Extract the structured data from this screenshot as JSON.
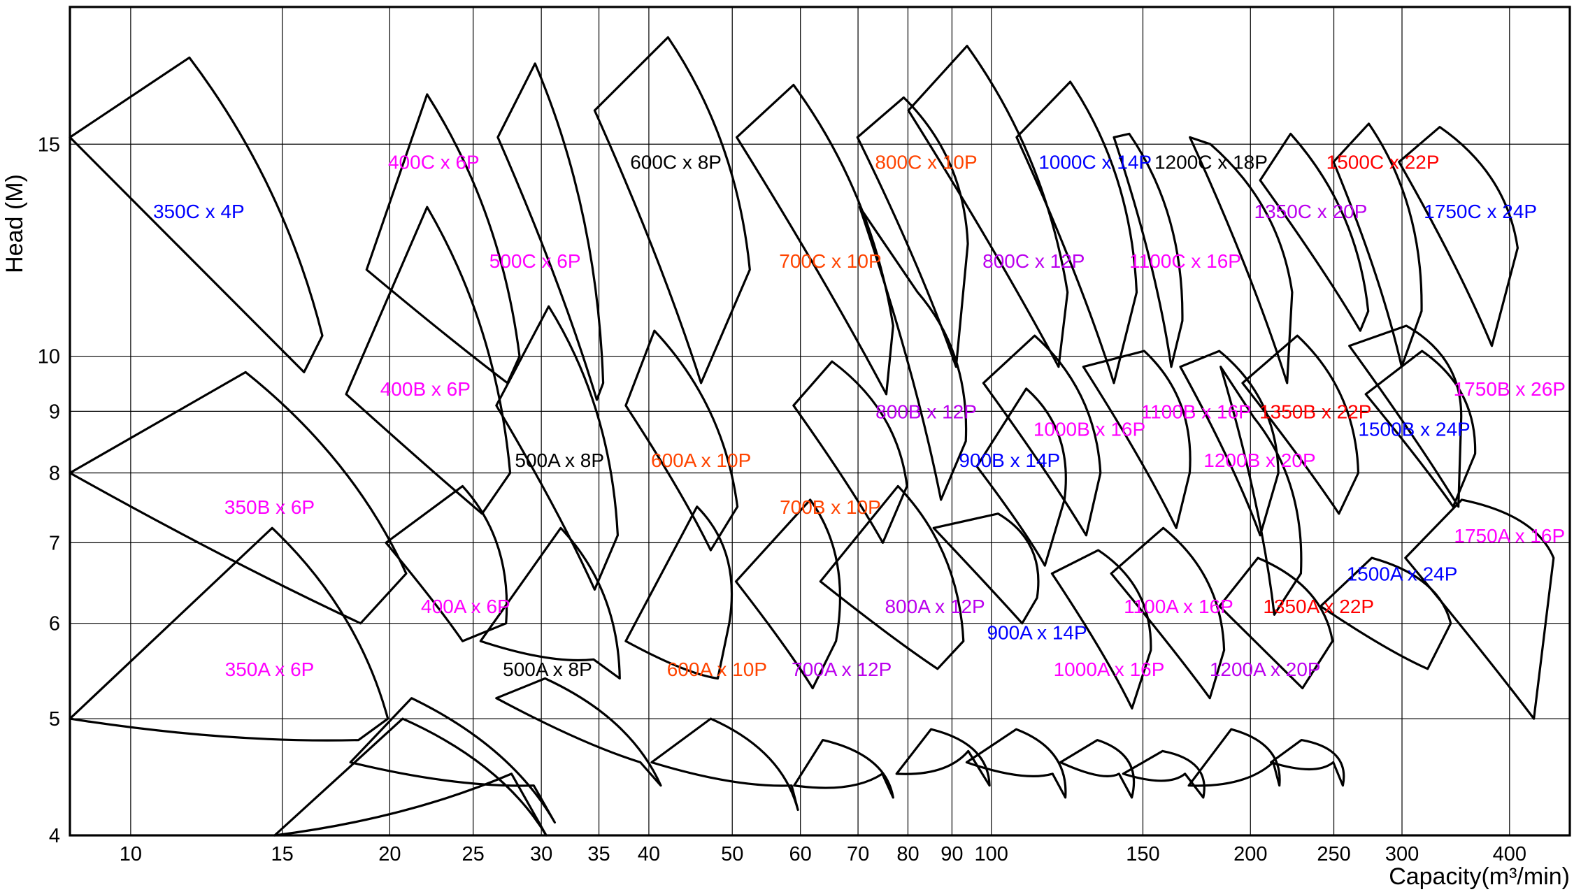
{
  "chart_data": {
    "type": "scatter",
    "title": "",
    "xlabel": "Capacity(m³/min)",
    "ylabel": "Head (M)",
    "x_scale": "log",
    "y_scale": "log",
    "xlim": [
      8.5,
      470
    ],
    "ylim": [
      4,
      19.5
    ],
    "x_ticks": [
      10,
      15,
      20,
      25,
      30,
      35,
      40,
      50,
      60,
      70,
      80,
      90,
      100,
      150,
      200,
      250,
      300,
      400
    ],
    "y_ticks": [
      4,
      5,
      6,
      7,
      8,
      9,
      10,
      15
    ],
    "grid": true,
    "colors": {
      "blue": "#0000ff",
      "magenta": "#ff00ff",
      "purple": "#bb00ee",
      "orange": "#ff4400",
      "red": "#ff0000",
      "black": "#000000"
    },
    "regions": [
      {
        "label": "350C x 4P",
        "color": "blue",
        "x": 12,
        "y": 13.2
      },
      {
        "label": "400C x 6P",
        "color": "magenta",
        "x": 22.5,
        "y": 14.5
      },
      {
        "label": "500C x 6P",
        "color": "magenta",
        "x": 29.5,
        "y": 12.0
      },
      {
        "label": "600C x 8P",
        "color": "black",
        "x": 43,
        "y": 14.5
      },
      {
        "label": "700C x 10P",
        "color": "orange",
        "x": 65,
        "y": 12.0
      },
      {
        "label": "800C x 10P",
        "color": "orange",
        "x": 84,
        "y": 14.5
      },
      {
        "label": "1000C x 14P",
        "color": "blue",
        "x": 132,
        "y": 14.5
      },
      {
        "label": "1200C x 18P",
        "color": "black",
        "x": 180,
        "y": 14.5
      },
      {
        "label": "1500C x 22P",
        "color": "red",
        "x": 285,
        "y": 14.5
      },
      {
        "label": "800C x 12P",
        "color": "purple",
        "x": 112,
        "y": 12.0
      },
      {
        "label": "1100C x 16P",
        "color": "magenta",
        "x": 168,
        "y": 12.0
      },
      {
        "label": "1350C x 20P",
        "color": "purple",
        "x": 235,
        "y": 13.2
      },
      {
        "label": "1750C x 24P",
        "color": "blue",
        "x": 370,
        "y": 13.2
      },
      {
        "label": "400B x 6P",
        "color": "magenta",
        "x": 22,
        "y": 9.4
      },
      {
        "label": "500A x 8P",
        "color": "black",
        "x": 31.5,
        "y": 8.2
      },
      {
        "label": "600A x 10P",
        "color": "orange",
        "x": 46,
        "y": 8.2
      },
      {
        "label": "800B x 12P",
        "color": "purple",
        "x": 84,
        "y": 9.0
      },
      {
        "label": "1000B x 16P",
        "color": "magenta",
        "x": 130,
        "y": 8.7
      },
      {
        "label": "1100B x 16P",
        "color": "magenta",
        "x": 173,
        "y": 9.0
      },
      {
        "label": "1350B x 22P",
        "color": "red",
        "x": 238,
        "y": 9.0
      },
      {
        "label": "1750B x 26P",
        "color": "magenta",
        "x": 400,
        "y": 9.4
      },
      {
        "label": "1500B x 24P",
        "color": "blue",
        "x": 310,
        "y": 8.7
      },
      {
        "label": "900B x 14P",
        "color": "blue",
        "x": 105,
        "y": 8.2
      },
      {
        "label": "1200B x 20P",
        "color": "magenta",
        "x": 205,
        "y": 8.2
      },
      {
        "label": "350B x 6P",
        "color": "magenta",
        "x": 14.5,
        "y": 7.5
      },
      {
        "label": "700B x 10P",
        "color": "orange",
        "x": 65,
        "y": 7.5
      },
      {
        "label": "1750A x 16P",
        "color": "magenta",
        "x": 400,
        "y": 7.1
      },
      {
        "label": "1500A x 24P",
        "color": "blue",
        "x": 300,
        "y": 6.6
      },
      {
        "label": "400A x 6P",
        "color": "magenta",
        "x": 24.5,
        "y": 6.2
      },
      {
        "label": "800A x 12P",
        "color": "purple",
        "x": 86,
        "y": 6.2
      },
      {
        "label": "1100A x 16P",
        "color": "magenta",
        "x": 165,
        "y": 6.2
      },
      {
        "label": "1350A x 22P",
        "color": "red",
        "x": 240,
        "y": 6.2
      },
      {
        "label": "900A x 14P",
        "color": "blue",
        "x": 113,
        "y": 5.9
      },
      {
        "label": "350A x 6P",
        "color": "magenta",
        "x": 14.5,
        "y": 5.5
      },
      {
        "label": "500A x 8P",
        "color": "black",
        "x": 30.5,
        "y": 5.5
      },
      {
        "label": "600A x 10P",
        "color": "orange",
        "x": 48,
        "y": 5.5
      },
      {
        "label": "700A x 12P",
        "color": "purple",
        "x": 67,
        "y": 5.5
      },
      {
        "label": "1000A x 16P",
        "color": "magenta",
        "x": 137,
        "y": 5.5
      },
      {
        "label": "1200A x 20P",
        "color": "purple",
        "x": 208,
        "y": 5.5
      }
    ],
    "envelopes": [
      [
        [
          8.5,
          15.2
        ],
        [
          11.7,
          17.7
        ],
        [
          16.7,
          10.4
        ],
        [
          15.9,
          9.7
        ]
      ],
      [
        [
          18.8,
          11.8
        ],
        [
          22.1,
          16.5
        ],
        [
          28.3,
          10.0
        ],
        [
          27.4,
          9.5
        ]
      ],
      [
        [
          26.7,
          15.2
        ],
        [
          29.5,
          17.5
        ],
        [
          35.4,
          9.5
        ],
        [
          34.8,
          9.2
        ]
      ],
      [
        [
          34.6,
          16.0
        ],
        [
          42.1,
          18.4
        ],
        [
          52.4,
          11.8
        ],
        [
          46.0,
          9.5
        ]
      ],
      [
        [
          50.6,
          15.2
        ],
        [
          58.9,
          16.8
        ],
        [
          76.9,
          10.6
        ],
        [
          75.5,
          9.3
        ]
      ],
      [
        [
          69.9,
          15.2
        ],
        [
          79.1,
          16.4
        ],
        [
          93.9,
          12.4
        ],
        [
          91.0,
          9.8
        ]
      ],
      [
        [
          80.1,
          16.0
        ],
        [
          93.7,
          18.1
        ],
        [
          122.6,
          11.3
        ],
        [
          119.7,
          9.8
        ]
      ],
      [
        [
          107.0,
          15.2
        ],
        [
          123.5,
          16.9
        ],
        [
          147.5,
          11.3
        ],
        [
          138.8,
          9.5
        ]
      ],
      [
        [
          138.8,
          15.2
        ],
        [
          144.6,
          15.3
        ],
        [
          166.7,
          10.7
        ],
        [
          161.8,
          9.8
        ]
      ],
      [
        [
          170.1,
          15.2
        ],
        [
          179.7,
          15.0
        ],
        [
          223.6,
          11.3
        ],
        [
          220.6,
          9.5
        ]
      ],
      [
        [
          205.3,
          14.0
        ],
        [
          222.7,
          15.3
        ],
        [
          274.1,
          10.9
        ],
        [
          268.3,
          10.5
        ]
      ],
      [
        [
          249.8,
          14.5
        ],
        [
          274.5,
          15.6
        ],
        [
          316.1,
          10.9
        ],
        [
          299.7,
          9.8
        ]
      ],
      [
        [
          297.6,
          14.5
        ],
        [
          331.9,
          15.5
        ],
        [
          408.8,
          12.3
        ],
        [
          381.5,
          10.2
        ]
      ],
      [
        [
          8.5,
          8.0
        ],
        [
          13.6,
          9.7
        ],
        [
          20.9,
          6.6
        ],
        [
          18.5,
          6.0
        ]
      ],
      [
        [
          17.8,
          9.3
        ],
        [
          22.1,
          13.3
        ],
        [
          27.6,
          8.0
        ],
        [
          25.6,
          7.4
        ]
      ],
      [
        [
          26.6,
          9.1
        ],
        [
          30.6,
          11.0
        ],
        [
          36.8,
          7.1
        ],
        [
          34.6,
          6.4
        ]
      ],
      [
        [
          37.6,
          9.1
        ],
        [
          40.6,
          10.5
        ],
        [
          50.7,
          7.5
        ],
        [
          47.2,
          6.9
        ]
      ],
      [
        [
          58.9,
          9.1
        ],
        [
          65.3,
          9.9
        ],
        [
          79.8,
          7.8
        ],
        [
          74.8,
          7.0
        ]
      ],
      [
        [
          70.3,
          13.3
        ],
        [
          82.1,
          11.3
        ],
        [
          93.4,
          8.5
        ],
        [
          87.4,
          7.6
        ]
      ],
      [
        [
          97.9,
          9.5
        ],
        [
          112.3,
          10.4
        ],
        [
          133.9,
          8.0
        ],
        [
          128.9,
          7.1
        ]
      ],
      [
        [
          127.9,
          9.8
        ],
        [
          150.5,
          10.1
        ],
        [
          170.0,
          8.0
        ],
        [
          164.0,
          7.2
        ]
      ],
      [
        [
          165.8,
          9.8
        ],
        [
          184.0,
          10.1
        ],
        [
          215.5,
          8.0
        ],
        [
          205.3,
          7.1
        ]
      ],
      [
        [
          195.8,
          9.5
        ],
        [
          226.7,
          10.4
        ],
        [
          266.9,
          8.0
        ],
        [
          253.4,
          7.4
        ]
      ],
      [
        [
          260.6,
          10.2
        ],
        [
          303.5,
          10.6
        ],
        [
          351.5,
          8.9
        ],
        [
          348.9,
          7.5
        ]
      ],
      [
        [
          272.3,
          9.3
        ],
        [
          316.5,
          10.1
        ],
        [
          364.8,
          8.3
        ],
        [
          344.0,
          7.5
        ]
      ],
      [
        [
          96.2,
          8.1
        ],
        [
          109.8,
          9.4
        ],
        [
          121.6,
          7.6
        ],
        [
          115.4,
          6.7
        ]
      ],
      [
        [
          184.7,
          9.8
        ],
        [
          201.7,
          8.9
        ],
        [
          228.9,
          6.6
        ],
        [
          213.2,
          6.1
        ]
      ],
      [
        [
          8.5,
          5.0
        ],
        [
          14.6,
          7.2
        ],
        [
          19.9,
          5.0
        ],
        [
          18.4,
          4.8
        ]
      ],
      [
        [
          19.8,
          7.0
        ],
        [
          24.3,
          7.8
        ],
        [
          27.3,
          6.0
        ],
        [
          24.3,
          5.8
        ]
      ],
      [
        [
          25.5,
          5.8
        ],
        [
          31.6,
          7.2
        ],
        [
          37.0,
          5.4
        ],
        [
          34.5,
          5.6
        ]
      ],
      [
        [
          37.6,
          5.8
        ],
        [
          45.5,
          7.5
        ],
        [
          49.6,
          6.0
        ],
        [
          48.1,
          5.4
        ]
      ],
      [
        [
          50.5,
          6.5
        ],
        [
          61.6,
          7.6
        ],
        [
          66.0,
          5.8
        ],
        [
          62.0,
          5.3
        ]
      ],
      [
        [
          63.3,
          6.5
        ],
        [
          77.9,
          7.8
        ],
        [
          92.8,
          5.8
        ],
        [
          86.6,
          5.5
        ]
      ],
      [
        [
          85.7,
          7.2
        ],
        [
          101.8,
          7.4
        ],
        [
          113.0,
          6.3
        ],
        [
          108.6,
          6.0
        ]
      ],
      [
        [
          117.6,
          6.6
        ],
        [
          133.1,
          6.9
        ],
        [
          153.2,
          5.7
        ],
        [
          145.7,
          5.1
        ]
      ],
      [
        [
          137.8,
          6.6
        ],
        [
          158.4,
          7.2
        ],
        [
          186.4,
          5.7
        ],
        [
          179.4,
          5.2
        ]
      ],
      [
        [
          184.1,
          6.2
        ],
        [
          204.0,
          6.8
        ],
        [
          249.1,
          5.8
        ],
        [
          229.9,
          5.3
        ]
      ],
      [
        [
          241.3,
          6.2
        ],
        [
          276.7,
          6.8
        ],
        [
          341.8,
          6.0
        ],
        [
          321.3,
          5.5
        ]
      ],
      [
        [
          302.7,
          6.8
        ],
        [
          352.0,
          7.6
        ],
        [
          450.0,
          6.8
        ],
        [
          426.9,
          5.0
        ]
      ],
      [
        [
          14.7,
          4.0
        ],
        [
          20.7,
          5.0
        ],
        [
          30.4,
          4.0
        ],
        [
          27.7,
          4.5
        ]
      ],
      [
        [
          18.0,
          4.6
        ],
        [
          21.2,
          5.2
        ],
        [
          31.1,
          4.1
        ],
        [
          29.4,
          4.4
        ]
      ],
      [
        [
          26.6,
          5.2
        ],
        [
          30.3,
          5.4
        ],
        [
          41.3,
          4.4
        ],
        [
          39.1,
          4.6
        ]
      ],
      [
        [
          40.3,
          4.6
        ],
        [
          47.2,
          5.0
        ],
        [
          59.6,
          4.2
        ],
        [
          58.6,
          4.4
        ]
      ],
      [
        [
          59.0,
          4.4
        ],
        [
          63.7,
          4.8
        ],
        [
          76.9,
          4.3
        ],
        [
          74.7,
          4.5
        ]
      ],
      [
        [
          77.6,
          4.5
        ],
        [
          85.1,
          4.9
        ],
        [
          99.5,
          4.4
        ],
        [
          94.0,
          4.7
        ]
      ],
      [
        [
          93.6,
          4.6
        ],
        [
          106.9,
          4.9
        ],
        [
          121.9,
          4.3
        ],
        [
          117.8,
          4.5
        ]
      ],
      [
        [
          120.3,
          4.6
        ],
        [
          132.8,
          4.8
        ],
        [
          145.6,
          4.3
        ],
        [
          140.7,
          4.5
        ]
      ],
      [
        [
          142.3,
          4.5
        ],
        [
          158.1,
          4.7
        ],
        [
          176.3,
          4.3
        ],
        [
          167.9,
          4.5
        ]
      ],
      [
        [
          169.6,
          4.4
        ],
        [
          190.0,
          4.9
        ],
        [
          216.1,
          4.4
        ],
        [
          212.6,
          4.6
        ]
      ],
      [
        [
          211.3,
          4.6
        ],
        [
          229.3,
          4.8
        ],
        [
          256.1,
          4.4
        ],
        [
          249.6,
          4.6
        ]
      ]
    ]
  }
}
